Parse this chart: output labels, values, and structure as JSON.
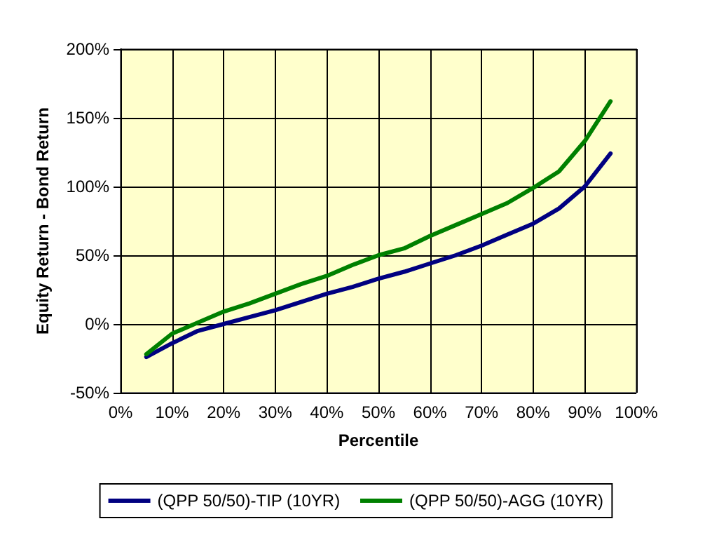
{
  "chart_data": {
    "type": "line",
    "xlabel": "Percentile",
    "ylabel": "Equity Return - Bond Return",
    "x": [
      5,
      10,
      15,
      20,
      25,
      30,
      35,
      40,
      45,
      50,
      55,
      60,
      65,
      70,
      75,
      80,
      85,
      90,
      95
    ],
    "series": [
      {
        "name": "(QPP 50/50)-TIP (10YR)",
        "color": "#000080",
        "values": [
          -24,
          -14,
          -5,
          0,
          5,
          10,
          16,
          22,
          27,
          33,
          38,
          44,
          50,
          57,
          65,
          73,
          84,
          100,
          124
        ]
      },
      {
        "name": "(QPP 50/50)-AGG (10YR)",
        "color": "#008000",
        "values": [
          -22,
          -7,
          1,
          9,
          15,
          22,
          29,
          35,
          43,
          50,
          55,
          64,
          72,
          80,
          88,
          99,
          111,
          133,
          162
        ]
      }
    ],
    "xlim": [
      0,
      100
    ],
    "xticks": [
      {
        "value": 0,
        "label": "0%"
      },
      {
        "value": 10,
        "label": "10%"
      },
      {
        "value": 20,
        "label": "20%"
      },
      {
        "value": 30,
        "label": "30%"
      },
      {
        "value": 40,
        "label": "40%"
      },
      {
        "value": 50,
        "label": "50%"
      },
      {
        "value": 60,
        "label": "60%"
      },
      {
        "value": 70,
        "label": "70%"
      },
      {
        "value": 80,
        "label": "80%"
      },
      {
        "value": 90,
        "label": "90%"
      },
      {
        "value": 100,
        "label": "100%"
      }
    ],
    "ylim": [
      -50,
      200
    ],
    "yticks": [
      {
        "value": -50,
        "label": "-50%"
      },
      {
        "value": 0,
        "label": "0%"
      },
      {
        "value": 50,
        "label": "50%"
      },
      {
        "value": 100,
        "label": "100%"
      },
      {
        "value": 150,
        "label": "150%"
      },
      {
        "value": 200,
        "label": "200%"
      }
    ],
    "grid": true,
    "legend": "bottom",
    "marker": "none",
    "line_style": "solid"
  }
}
